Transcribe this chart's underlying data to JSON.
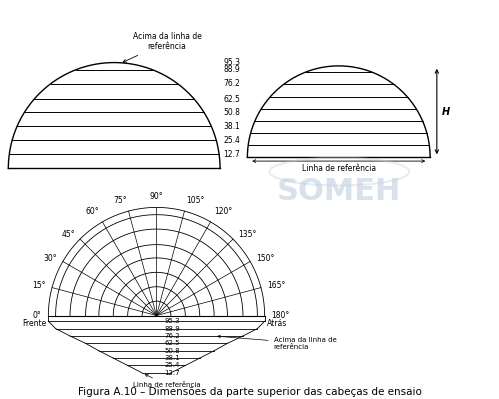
{
  "title": "Figura A.10 – Dimensões da parte superior das cabeças de ensaio",
  "radii": [
    12.7,
    25.4,
    38.1,
    50.8,
    62.5,
    76.2,
    88.9,
    95.3
  ],
  "angles_deg": [
    0,
    15,
    30,
    45,
    60,
    75,
    90,
    105,
    120,
    135,
    150,
    165,
    180
  ],
  "angle_labels": [
    "0°",
    "15°",
    "30°",
    "45°",
    "60°",
    "75°",
    "90°",
    "105°",
    "120°",
    "135°",
    "150°",
    "165°",
    "180°"
  ],
  "line_color": "#000000",
  "bg_color": "#ffffff",
  "watermark_color": "#c0d0e0",
  "ref_line_label": "Linha de referência",
  "above_ref_label": "Acima da linha de\nreferência",
  "frente_label": "Frente",
  "atras_label": "Atrás",
  "H_label": "H",
  "top_above_ref": "Acima da linha de\nreferência",
  "fontsize_small": 5.5,
  "fontsize_medium": 7,
  "fontsize_title": 7.5
}
